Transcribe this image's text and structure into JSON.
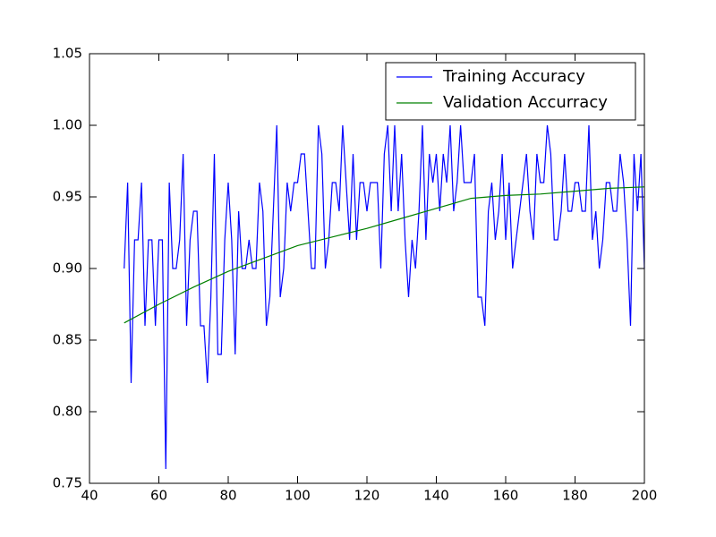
{
  "chart_data": {
    "type": "line",
    "legend": "upper right",
    "xlim": [
      40,
      200
    ],
    "xticks": [
      40,
      60,
      80,
      100,
      120,
      140,
      160,
      180,
      200
    ],
    "ylim": [
      0.75,
      1.05
    ],
    "yticks": [
      0.75,
      {
        "value": 0.8,
        "label": "0.80"
      },
      0.85,
      {
        "value": 0.9,
        "label": "0.90"
      },
      0.95,
      {
        "value": 1.0,
        "label": "1.00"
      },
      1.05
    ],
    "series": [
      {
        "name": "Training Accuracy",
        "color": "#0000ff",
        "x": [
          50,
          51,
          52,
          53,
          54,
          55,
          56,
          57,
          58,
          59,
          60,
          61,
          62,
          63,
          64,
          65,
          66,
          67,
          68,
          69,
          70,
          71,
          72,
          73,
          74,
          75,
          76,
          77,
          78,
          79,
          80,
          81,
          82,
          83,
          84,
          85,
          86,
          87,
          88,
          89,
          90,
          91,
          92,
          93,
          94,
          95,
          96,
          97,
          98,
          99,
          100,
          101,
          102,
          103,
          104,
          105,
          106,
          107,
          108,
          109,
          110,
          111,
          112,
          113,
          114,
          115,
          116,
          117,
          118,
          119,
          120,
          121,
          122,
          123,
          124,
          125,
          126,
          127,
          128,
          129,
          130,
          131,
          132,
          133,
          134,
          135,
          136,
          137,
          138,
          139,
          140,
          141,
          142,
          143,
          144,
          145,
          146,
          147,
          148,
          149,
          150,
          151,
          152,
          153,
          154,
          155,
          156,
          157,
          158,
          159,
          160,
          161,
          162,
          163,
          164,
          165,
          166,
          167,
          168,
          169,
          170,
          171,
          172,
          173,
          174,
          175,
          176,
          177,
          178,
          179,
          180,
          181,
          182,
          183,
          184,
          185,
          186,
          187,
          188,
          189,
          190,
          191,
          192,
          193,
          194,
          195,
          196,
          197,
          198,
          199,
          200
        ],
        "values": [
          0.9,
          0.96,
          0.82,
          0.92,
          0.92,
          0.96,
          0.86,
          0.92,
          0.92,
          0.86,
          0.92,
          0.92,
          0.76,
          0.96,
          0.9,
          0.9,
          0.92,
          0.98,
          0.86,
          0.92,
          0.94,
          0.94,
          0.86,
          0.86,
          0.82,
          0.88,
          0.98,
          0.84,
          0.84,
          0.92,
          0.96,
          0.92,
          0.84,
          0.94,
          0.9,
          0.9,
          0.92,
          0.9,
          0.9,
          0.96,
          0.94,
          0.86,
          0.88,
          0.94,
          1.0,
          0.88,
          0.9,
          0.96,
          0.94,
          0.96,
          0.96,
          0.98,
          0.98,
          0.94,
          0.9,
          0.9,
          1.0,
          0.98,
          0.9,
          0.92,
          0.96,
          0.96,
          0.94,
          1.0,
          0.96,
          0.92,
          0.98,
          0.92,
          0.96,
          0.96,
          0.94,
          0.96,
          0.96,
          0.96,
          0.9,
          0.98,
          1.0,
          0.94,
          1.0,
          0.94,
          0.98,
          0.92,
          0.88,
          0.92,
          0.9,
          0.94,
          1.0,
          0.92,
          0.98,
          0.96,
          0.98,
          0.94,
          0.98,
          0.96,
          1.0,
          0.94,
          0.96,
          1.0,
          0.96,
          0.96,
          0.96,
          0.98,
          0.88,
          0.88,
          0.86,
          0.94,
          0.96,
          0.92,
          0.94,
          0.98,
          0.92,
          0.96,
          0.9,
          0.92,
          0.94,
          0.96,
          0.98,
          0.94,
          0.92,
          0.98,
          0.96,
          0.96,
          1.0,
          0.98,
          0.92,
          0.92,
          0.94,
          0.98,
          0.94,
          0.94,
          0.96,
          0.96,
          0.94,
          0.94,
          1.0,
          0.92,
          0.94,
          0.9,
          0.92,
          0.96,
          0.96,
          0.94,
          0.94,
          0.98,
          0.96,
          0.92,
          0.86,
          0.98,
          0.94,
          0.98,
          0.9
        ]
      },
      {
        "name": "Validation Accurracy",
        "color": "#008000",
        "x": [
          50,
          60,
          70,
          80,
          90,
          100,
          110,
          120,
          130,
          140,
          150,
          160,
          170,
          180,
          190,
          200
        ],
        "values": [
          0.862,
          0.875,
          0.887,
          0.898,
          0.907,
          0.916,
          0.922,
          0.928,
          0.935,
          0.942,
          0.949,
          0.951,
          0.952,
          0.954,
          0.956,
          0.957
        ]
      }
    ]
  }
}
